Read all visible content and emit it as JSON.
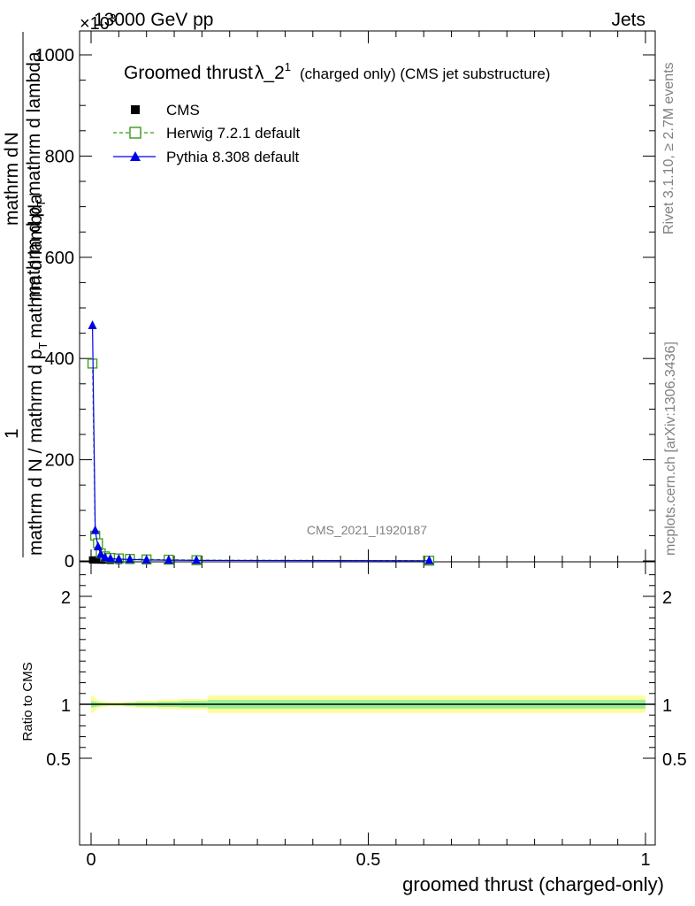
{
  "header": {
    "left": "13000 GeV pp",
    "right": "Jets",
    "scale_prefix": "×10",
    "scale_exponent": "3"
  },
  "title": {
    "main": "Groomed thrust",
    "lambda": "λ_2",
    "sup": "1",
    "detail": "(charged only) (CMS jet substructure)"
  },
  "side_labels": {
    "rivet": "Rivet 3.1.10, ≥ 2.7M events",
    "mcplots": "mcplots.cern.ch [arXiv:1306.3436]"
  },
  "watermark": "CMS_2021_I1920187",
  "y_axis": {
    "top_line_a": "1",
    "frac_num_1": "mathrm d",
    "frac_num_2": "N",
    "frac_den_1": "mathrm d N / mathrm d p",
    "frac_den_sub_1": "T",
    "frac_den_2": "mathrm d p",
    "frac_den_sub_2": "T",
    "frac_den_3": "mathrm d lambda",
    "main_label_1": "mathrm d",
    "main_label_2": "N",
    "left_line": "mathrm d p",
    "left_sub": "T",
    "left_rest": "mathrm d lambda"
  },
  "colors": {
    "cms": "#000000",
    "herwig": "#3a9a17",
    "pythia": "#0000e6",
    "band_yellow": "#fdfd9a",
    "band_green": "#99ef99"
  },
  "chart_data": {
    "type": "line",
    "xlabel": "groomed thrust (charged-only)",
    "ylabel": "1 / mathrm d N / mathrm d p_T   mathrm d^2N / mathrm d p_T mathrm d lambda",
    "xlim": [
      0,
      1
    ],
    "main_ylim": [
      0,
      1050000
    ],
    "main_yticks": [
      0,
      200,
      400,
      600,
      800,
      1000
    ],
    "main_ytick_labels": [
      "0",
      "200",
      "400",
      "600",
      "800",
      "1000"
    ],
    "main_y_multiplier": 1000,
    "xticks": [
      0,
      0.5,
      1
    ],
    "xtick_labels": [
      "0",
      "0.5",
      "1"
    ],
    "legend": [
      {
        "key": "cms",
        "label": "CMS",
        "marker": "filled-square"
      },
      {
        "key": "herwig",
        "label": "Herwig 7.2.1 default",
        "marker": "open-square-dashed"
      },
      {
        "key": "pythia",
        "label": "Pythia 8.308 default",
        "marker": "filled-triangle"
      }
    ],
    "series": [
      {
        "name": "CMS",
        "x": [
          0.0025,
          0.0075,
          0.0125,
          0.0175,
          0.025,
          0.035,
          0.05,
          0.07,
          0.1,
          0.14,
          0.19,
          0.61
        ],
        "y": [
          2000,
          2000,
          2000,
          1500,
          1500,
          1000,
          1000,
          1000,
          1000,
          1000,
          800,
          500
        ]
      },
      {
        "name": "Herwig 7.2.1 default",
        "x": [
          0.0025,
          0.0075,
          0.0125,
          0.0175,
          0.025,
          0.035,
          0.05,
          0.07,
          0.1,
          0.14,
          0.19,
          0.61
        ],
        "y": [
          390000,
          50000,
          35000,
          15000,
          9000,
          6000,
          5000,
          4000,
          3000,
          2500,
          1500,
          500
        ]
      },
      {
        "name": "Pythia 8.308 default",
        "x": [
          0.0025,
          0.0075,
          0.0125,
          0.0175,
          0.025,
          0.035,
          0.05,
          0.07,
          0.1,
          0.14,
          0.19,
          0.61
        ],
        "y": [
          465000,
          60000,
          28000,
          13000,
          7000,
          4500,
          3500,
          3000,
          2000,
          1500,
          1000,
          400
        ]
      }
    ],
    "ratio": {
      "ylabel": "Ratio to CMS",
      "ylim": [
        0.35,
        2.35
      ],
      "yticks": [
        0.5,
        1,
        2
      ],
      "ytick_labels": [
        "0.5",
        "1",
        "2"
      ],
      "bins": [
        0,
        0.005,
        0.01,
        0.015,
        0.02,
        0.03,
        0.04,
        0.06,
        0.08,
        0.12,
        0.16,
        0.21,
        1.0
      ],
      "green_half": [
        0.03,
        0.025,
        0.02,
        0.015,
        0.012,
        0.01,
        0.01,
        0.015,
        0.02,
        0.025,
        0.03,
        0.04
      ],
      "yellow_half": [
        0.08,
        0.06,
        0.04,
        0.03,
        0.025,
        0.02,
        0.02,
        0.025,
        0.035,
        0.045,
        0.05,
        0.08
      ]
    }
  }
}
